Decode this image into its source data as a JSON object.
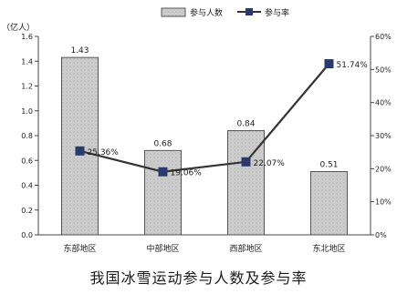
{
  "chart_data": {
    "type": "bar",
    "title": "我国冰雪运动参与人数及参与率",
    "categories": [
      "东部地区",
      "中部地区",
      "西部地区",
      "东北地区"
    ],
    "series": [
      {
        "name": "参与人数",
        "type": "bar",
        "axis": "left",
        "values": [
          1.43,
          0.68,
          0.84,
          0.51
        ],
        "labels": [
          "1.43",
          "0.68",
          "0.84",
          "0.51"
        ]
      },
      {
        "name": "参与率",
        "type": "line",
        "axis": "right",
        "values": [
          25.36,
          19.06,
          22.07,
          51.74
        ],
        "labels": [
          "25.36%",
          "19.06%",
          "22.07%",
          "51.74%"
        ]
      }
    ],
    "ylabel_left": "（亿人）",
    "ylim_left": [
      0,
      1.6
    ],
    "yticks_left": [
      "0.0",
      "0.2",
      "0.4",
      "0.6",
      "0.8",
      "1.0",
      "1.2",
      "1.4",
      "1.6"
    ],
    "ylim_right": [
      0,
      60
    ],
    "yticks_right": [
      "0%",
      "10%",
      "20%",
      "30%",
      "40%",
      "50%",
      "60%"
    ],
    "legend_position": "top",
    "grid": false,
    "colors": {
      "bar_fill": "#cfcfcf",
      "bar_stroke": "#555555",
      "line": "#333333",
      "marker": "#2b3a6e"
    }
  }
}
